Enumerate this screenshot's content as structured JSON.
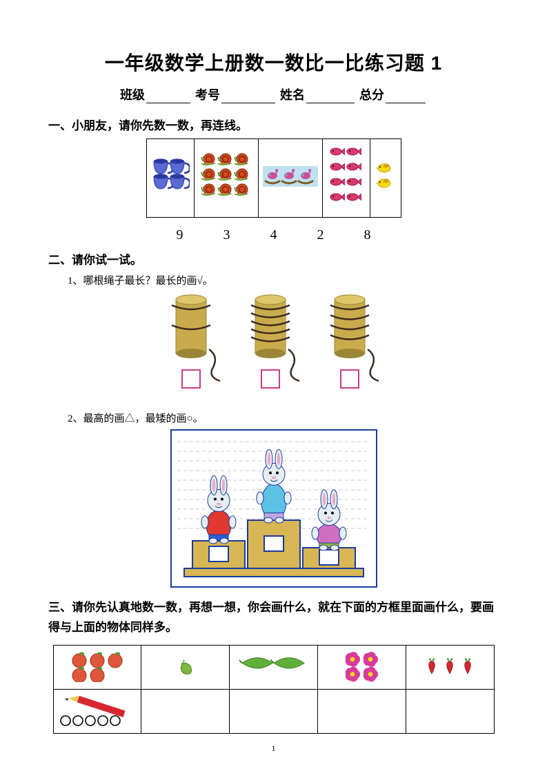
{
  "title": "一年级数学上册数一数比一比练习题 1",
  "info": {
    "class_label": "班级",
    "examno_label": "考号",
    "name_label": "姓名",
    "total_label": "总分"
  },
  "q1": {
    "heading": "一、小朋友，请你先数一数，再连线。",
    "cells": [
      {
        "kind": "cups",
        "count": 4,
        "cols": 2,
        "rows": 2,
        "item_color": "#5a6bd6",
        "accent": "#2b3aa0"
      },
      {
        "kind": "snails",
        "count": 9,
        "cols": 3,
        "rows": 3,
        "item_color": "#d9481f",
        "accent": "#8fb63f"
      },
      {
        "kind": "horses",
        "count": 3,
        "cols": 3,
        "rows": 1,
        "item_color": "#c94f9b",
        "accent": "#6fb7d6",
        "bg": "#bfe0ef"
      },
      {
        "kind": "fish",
        "count": 8,
        "cols": 2,
        "rows": 4,
        "item_color": "#d83a6a",
        "accent": "#a3185a"
      },
      {
        "kind": "birds",
        "count": 2,
        "cols": 1,
        "rows": 2,
        "item_color": "#f6d915",
        "accent": "#d4a400"
      }
    ],
    "numbers": [
      "9",
      "3",
      "4",
      "2",
      "8"
    ]
  },
  "q2": {
    "heading": "二、请你试一试。",
    "sub1": "1、哪根绳子最长？最长的画√。",
    "sub2": "2、最高的画△，最矮的画○。",
    "ropes": {
      "cylinder_color": "#c9ab4c",
      "cylinder_top": "#e0c66b",
      "cylinder_shadow": "#9b8537",
      "rope_color": "#3d2b1f",
      "box_border": "#c93a8a",
      "items": [
        {
          "wraps": 2
        },
        {
          "wraps": 5
        },
        {
          "wraps": 4
        }
      ]
    },
    "rabbits": {
      "bg_lines": "#c8c8c8",
      "podium_fill": "#d7b653",
      "podium_edge": "#1b3aa0",
      "box_fill": "#ffffff",
      "positions": [
        {
          "height": 110,
          "shirt": "#e0392d",
          "pants": "#2b5fd6",
          "podium_h": 40
        },
        {
          "height": 130,
          "shirt": "#5cc2e6",
          "pants": "#bca7e0",
          "podium_h": 70
        },
        {
          "height": 85,
          "shirt": "#d06fc2",
          "pants": "#8fb83f",
          "podium_h": 30
        }
      ],
      "rabbit_body": "#e6eef2",
      "ear_inner": "#e9a8c3"
    }
  },
  "q3": {
    "heading": "三、请你先认真地数一数，再想一想，你会画什么，就在下面的方框里面画什么，要画得与上面的物体同样多。",
    "row1": [
      {
        "kind": "oranges",
        "count": 5,
        "color": "#e0563a",
        "leaf": "#4a9a30"
      },
      {
        "kind": "pepper",
        "count": 1,
        "color": "#7fb83f",
        "stem": "#4a7a22"
      },
      {
        "kind": "cucumbers",
        "count": 2,
        "color": "#5fb038",
        "stem": "#3d7a1f"
      },
      {
        "kind": "flowers",
        "count": 4,
        "color": "#d83a9a",
        "center": "#f6d915"
      },
      {
        "kind": "radishes",
        "count": 3,
        "color": "#d8262f",
        "leaf": "#4a9a30"
      }
    ],
    "row2_first": {
      "pencil_body": "#d8262f",
      "pencil_tip": "#f0c85a",
      "circle_count": 5
    }
  },
  "page_number": "1"
}
